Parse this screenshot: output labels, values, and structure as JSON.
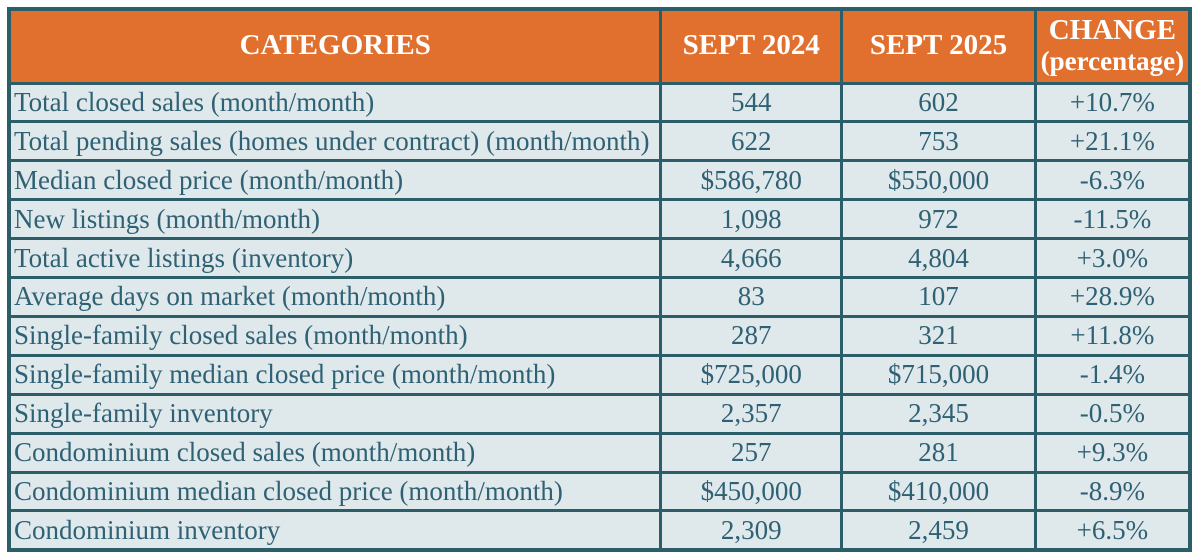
{
  "colors": {
    "header_bg": "#e1702f",
    "header_text": "#ffffff",
    "body_bg": "#dfe8eb",
    "body_text": "#2f6174",
    "border": "#2b5e68",
    "page_bg": "#ffffff"
  },
  "table": {
    "columns": [
      {
        "label": "CATEGORIES"
      },
      {
        "label": "SEPT 2024"
      },
      {
        "label": "SEPT 2025"
      },
      {
        "label": "CHANGE",
        "sublabel": "(percentage)"
      }
    ],
    "rows": [
      {
        "category": "Total closed sales (month/month)",
        "sept_2024": "544",
        "sept_2025": "602",
        "change": "+10.7%"
      },
      {
        "category": "Total pending sales (homes under contract) (month/month)",
        "sept_2024": "622",
        "sept_2025": "753",
        "change": "+21.1%"
      },
      {
        "category": "Median closed price (month/month)",
        "sept_2024": "$586,780",
        "sept_2025": "$550,000",
        "change": "-6.3%"
      },
      {
        "category": "New listings (month/month)",
        "sept_2024": "1,098",
        "sept_2025": "972",
        "change": "-11.5%"
      },
      {
        "category": "Total active listings (inventory)",
        "sept_2024": "4,666",
        "sept_2025": "4,804",
        "change": "+3.0%"
      },
      {
        "category": "Average days on market (month/month)",
        "sept_2024": "83",
        "sept_2025": "107",
        "change": "+28.9%"
      },
      {
        "category": "Single-family closed sales (month/month)",
        "sept_2024": "287",
        "sept_2025": "321",
        "change": "+11.8%"
      },
      {
        "category": "Single-family median closed price (month/month)",
        "sept_2024": "$725,000",
        "sept_2025": "$715,000",
        "change": "-1.4%"
      },
      {
        "category": "Single-family inventory",
        "sept_2024": "2,357",
        "sept_2025": "2,345",
        "change": "-0.5%"
      },
      {
        "category": "Condominium closed sales (month/month)",
        "sept_2024": "257",
        "sept_2025": "281",
        "change": "+9.3%"
      },
      {
        "category": "Condominium median closed price (month/month)",
        "sept_2024": "$450,000",
        "sept_2025": "$410,000",
        "change": "-8.9%"
      },
      {
        "category": "Condominium inventory",
        "sept_2024": "2,309",
        "sept_2025": "2,459",
        "change": "+6.5%"
      }
    ]
  },
  "chart_data": {
    "type": "table",
    "title": "",
    "columns": [
      "CATEGORIES",
      "SEPT 2024",
      "SEPT 2025",
      "CHANGE (percentage)"
    ],
    "rows": [
      [
        "Total closed sales (month/month)",
        544,
        602,
        "+10.7%"
      ],
      [
        "Total pending sales (homes under contract) (month/month)",
        622,
        753,
        "+21.1%"
      ],
      [
        "Median closed price (month/month)",
        586780,
        550000,
        "-6.3%"
      ],
      [
        "New listings (month/month)",
        1098,
        972,
        "-11.5%"
      ],
      [
        "Total active listings (inventory)",
        4666,
        4804,
        "+3.0%"
      ],
      [
        "Average days on market (month/month)",
        83,
        107,
        "+28.9%"
      ],
      [
        "Single-family closed sales (month/month)",
        287,
        321,
        "+11.8%"
      ],
      [
        "Single-family median closed price (month/month)",
        725000,
        715000,
        "-1.4%"
      ],
      [
        "Single-family inventory",
        2357,
        2345,
        "-0.5%"
      ],
      [
        "Condominium closed sales (month/month)",
        257,
        281,
        "+9.3%"
      ],
      [
        "Condominium median closed price (month/month)",
        450000,
        410000,
        "-8.9%"
      ],
      [
        "Condominium inventory",
        2309,
        2459,
        "+6.5%"
      ]
    ]
  }
}
